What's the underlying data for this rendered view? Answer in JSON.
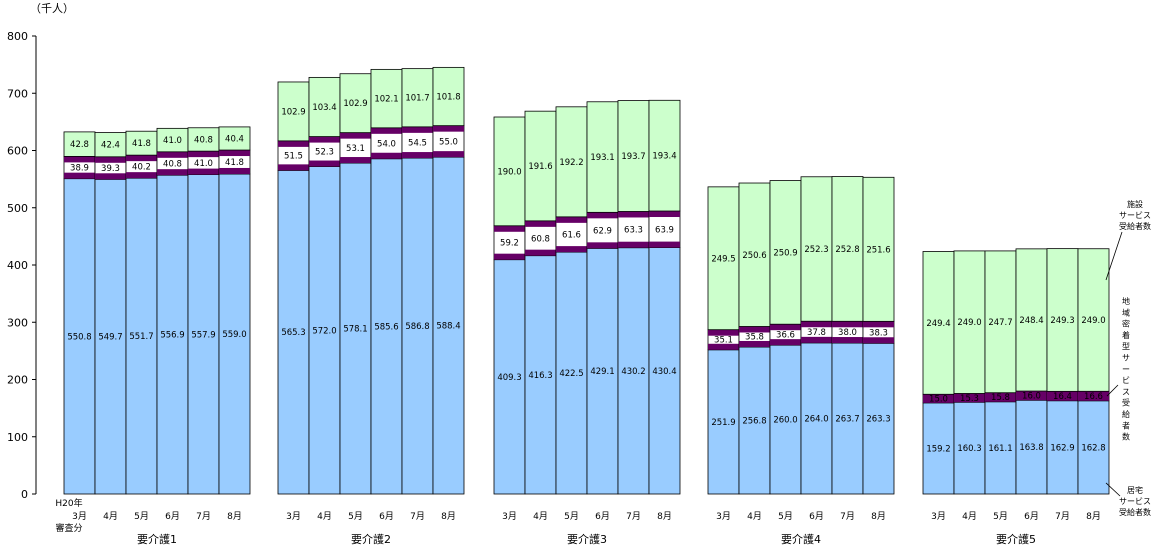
{
  "chart_data": {
    "type": "bar",
    "stacked": true,
    "unit_label": "（千人）",
    "ylim": [
      0,
      800
    ],
    "yticks": [
      "0",
      "100",
      "200",
      "300",
      "400",
      "500",
      "600",
      "700",
      "800"
    ],
    "month_labels": [
      "3月",
      "4月",
      "5月",
      "6月",
      "7月",
      "8月"
    ],
    "first_month_prefix": "H20年",
    "first_month_suffix": "審査分",
    "groups": [
      {
        "label": "要介護1",
        "kyotaku": [
          550.8,
          549.7,
          551.7,
          556.9,
          557.9,
          559.0
        ],
        "chiiki": [
          38.9,
          39.3,
          40.2,
          40.8,
          41.0,
          41.8
        ],
        "shisetsu": [
          42.8,
          42.4,
          41.8,
          41.0,
          40.8,
          40.4
        ],
        "kyotaku_text": [
          "550.8",
          "549.7",
          "551.7",
          "556.9",
          "557.9",
          "559.0"
        ],
        "chiiki_text": [
          "38.9",
          "39.3",
          "40.2",
          "40.8",
          "41.0",
          "41.8"
        ],
        "shisetsu_text": [
          "42.8",
          "42.4",
          "41.8",
          "41.0",
          "40.8",
          "40.4"
        ]
      },
      {
        "label": "要介護2",
        "kyotaku": [
          565.3,
          572.0,
          578.1,
          585.6,
          586.8,
          588.4
        ],
        "chiiki": [
          51.5,
          52.3,
          53.1,
          54.0,
          54.5,
          55.0
        ],
        "shisetsu": [
          102.9,
          103.4,
          102.9,
          102.1,
          101.7,
          101.8
        ],
        "kyotaku_text": [
          "565.3",
          "572.0",
          "578.1",
          "585.6",
          "586.8",
          "588.4"
        ],
        "chiiki_text": [
          "51.5",
          "52.3",
          "53.1",
          "54.0",
          "54.5",
          "55.0"
        ],
        "shisetsu_text": [
          "102.9",
          "103.4",
          "102.9",
          "102.1",
          "101.7",
          "101.8"
        ]
      },
      {
        "label": "要介護3",
        "kyotaku": [
          409.3,
          416.3,
          422.5,
          429.1,
          430.2,
          430.4
        ],
        "chiiki": [
          59.2,
          60.8,
          61.6,
          62.9,
          63.3,
          63.9
        ],
        "shisetsu": [
          190.0,
          191.6,
          192.2,
          193.1,
          193.7,
          193.4
        ],
        "kyotaku_text": [
          "409.3",
          "416.3",
          "422.5",
          "429.1",
          "430.2",
          "430.4"
        ],
        "chiiki_text": [
          "59.2",
          "60.8",
          "61.6",
          "62.9",
          "63.3",
          "63.9"
        ],
        "shisetsu_text": [
          "190.0",
          "191.6",
          "192.2",
          "193.1",
          "193.7",
          "193.4"
        ]
      },
      {
        "label": "要介護4",
        "kyotaku": [
          251.9,
          256.8,
          260.0,
          264.0,
          263.7,
          263.3
        ],
        "chiiki": [
          35.1,
          35.8,
          36.6,
          37.8,
          38.0,
          38.3
        ],
        "shisetsu": [
          249.5,
          250.6,
          250.9,
          252.3,
          252.8,
          251.6
        ],
        "kyotaku_text": [
          "251.9",
          "256.8",
          "260.0",
          "264.0",
          "263.7",
          "263.3"
        ],
        "chiiki_text": [
          "35.1",
          "35.8",
          "36.6",
          "37.8",
          "38.0",
          "38.3"
        ],
        "shisetsu_text": [
          "249.5",
          "250.6",
          "250.9",
          "252.3",
          "252.8",
          "251.6"
        ]
      },
      {
        "label": "要介護5",
        "kyotaku": [
          159.2,
          160.3,
          161.1,
          163.8,
          162.9,
          162.8
        ],
        "chiiki": [
          15.0,
          15.3,
          15.8,
          16.0,
          16.4,
          16.6
        ],
        "shisetsu": [
          249.4,
          249.0,
          247.7,
          248.4,
          249.3,
          249.0
        ],
        "kyotaku_text": [
          "159.2",
          "160.3",
          "161.1",
          "163.8",
          "162.9",
          "162.8"
        ],
        "chiiki_text": [
          "15.0",
          "15.3",
          "15.8",
          "16.0",
          "16.4",
          "16.6"
        ],
        "shisetsu_text": [
          "249.4",
          "249.0",
          "247.7",
          "248.4",
          "249.3",
          "249.0"
        ]
      }
    ],
    "legend": {
      "shisetsu": [
        "施設",
        "サービス",
        "受給者数"
      ],
      "chiiki": [
        "地",
        "域",
        "密",
        "着",
        "型",
        "サ",
        "ー",
        "ビ",
        "ス",
        "受",
        "給",
        "者",
        "数"
      ],
      "kyotaku": [
        "居宅",
        "サービス",
        "受給者数"
      ]
    },
    "colors": {
      "kyotaku": "#99ccff",
      "chiiki": "#ffffff",
      "shisetsu": "#ccffcc",
      "band": "#660066",
      "stroke": "#000000"
    }
  }
}
